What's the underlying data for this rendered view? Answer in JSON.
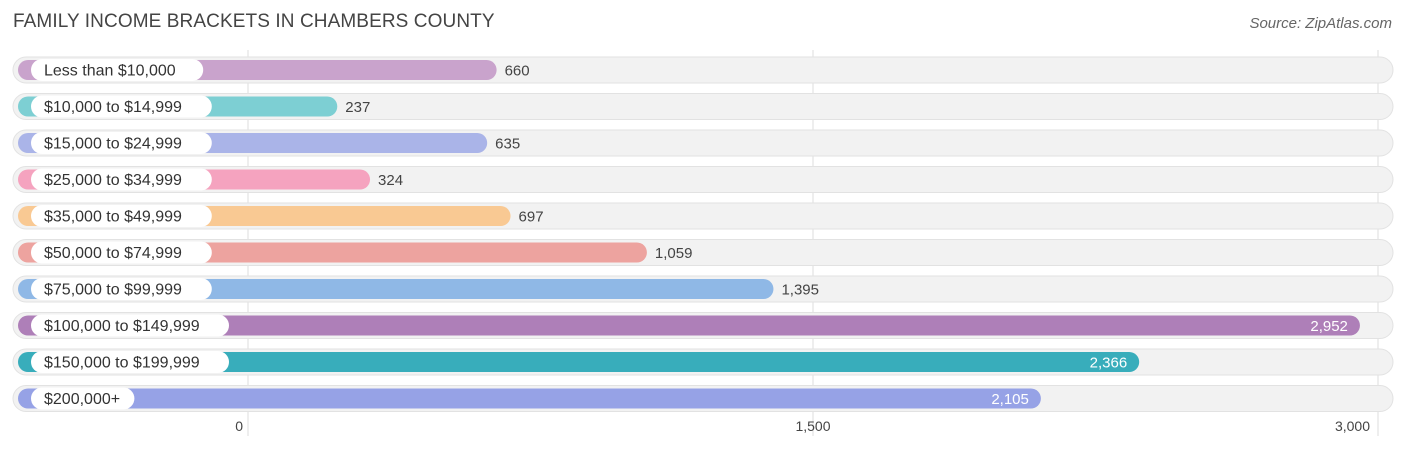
{
  "header": {
    "title": "FAMILY INCOME BRACKETS IN CHAMBERS COUNTY",
    "source": "Source: ZipAtlas.com"
  },
  "chart_data": {
    "type": "bar",
    "orientation": "horizontal",
    "title": "FAMILY INCOME BRACKETS IN CHAMBERS COUNTY",
    "xlabel": "",
    "ylabel": "",
    "categories": [
      "Less than $10,000",
      "$10,000 to $14,999",
      "$15,000 to $24,999",
      "$25,000 to $34,999",
      "$35,000 to $49,999",
      "$50,000 to $74,999",
      "$75,000 to $99,999",
      "$100,000 to $149,999",
      "$150,000 to $199,999",
      "$200,000+"
    ],
    "values": [
      660,
      237,
      635,
      324,
      697,
      1059,
      1395,
      2952,
      2366,
      2105
    ],
    "value_labels": [
      "660",
      "237",
      "635",
      "324",
      "697",
      "1,059",
      "1,395",
      "2,952",
      "2,366",
      "2,105"
    ],
    "colors": [
      "#c9a3cc",
      "#7dcfd3",
      "#aab4e8",
      "#f5a3bf",
      "#f9c993",
      "#eda39f",
      "#8fb8e6",
      "#ae7fb8",
      "#38adbb",
      "#96a2e6"
    ],
    "xlim": [
      0,
      3000
    ],
    "xticks": [
      0,
      1500,
      3000
    ],
    "xtick_labels": [
      "0",
      "1,500",
      "3,000"
    ],
    "grid": true,
    "legend": "none"
  }
}
